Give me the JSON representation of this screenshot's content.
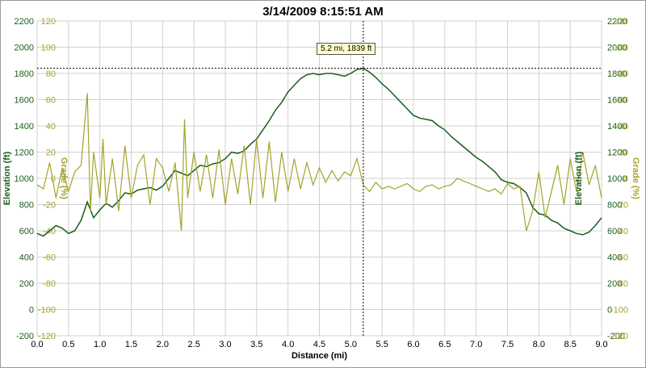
{
  "title": "3/14/2009 8:15:51 AM",
  "tooltip": "5.2 mi, 1839 ft",
  "colors": {
    "elevation": "#1a5e1a",
    "grade": "#a3a32a",
    "grid": "#d0d0d0",
    "axis": "#808080"
  },
  "chart_data": {
    "type": "line",
    "title": "3/14/2009 8:15:51 AM",
    "xlabel": "Distance (mi)",
    "ylabel": "Elevation (ft)",
    "y2label": "Grade (%)",
    "xlim": [
      0,
      9
    ],
    "ylim": [
      -200,
      2200
    ],
    "y2lim": [
      -120,
      120
    ],
    "xticks": [
      "0.0",
      "0.5",
      "1.0",
      "1.5",
      "2.0",
      "2.5",
      "3.0",
      "3.5",
      "4.0",
      "4.5",
      "5.0",
      "5.5",
      "6.0",
      "6.5",
      "7.0",
      "7.5",
      "8.0",
      "8.5",
      "9.0"
    ],
    "yticks": [
      "-200",
      "0",
      "200",
      "400",
      "600",
      "800",
      "1000",
      "1200",
      "1400",
      "1600",
      "1800",
      "2000",
      "2200"
    ],
    "y2ticks": [
      "-120",
      "-100",
      "-80",
      "-60",
      "-40",
      "-20",
      "0",
      "20",
      "40",
      "60",
      "80",
      "100",
      "120"
    ],
    "grid": true,
    "crosshair": {
      "x": 5.2,
      "y": 1839
    },
    "series": [
      {
        "name": "Elevation (ft)",
        "axis": "left",
        "x": [
          0,
          0.1,
          0.2,
          0.3,
          0.4,
          0.5,
          0.6,
          0.7,
          0.8,
          0.9,
          1.0,
          1.1,
          1.2,
          1.3,
          1.4,
          1.5,
          1.6,
          1.7,
          1.8,
          1.9,
          2.0,
          2.1,
          2.2,
          2.3,
          2.4,
          2.5,
          2.6,
          2.7,
          2.8,
          2.9,
          3.0,
          3.1,
          3.2,
          3.3,
          3.4,
          3.5,
          3.6,
          3.7,
          3.8,
          3.9,
          4.0,
          4.1,
          4.2,
          4.3,
          4.4,
          4.5,
          4.6,
          4.7,
          4.8,
          4.9,
          5.0,
          5.1,
          5.2,
          5.3,
          5.4,
          5.5,
          5.6,
          5.7,
          5.8,
          5.9,
          6.0,
          6.1,
          6.2,
          6.3,
          6.4,
          6.5,
          6.6,
          6.7,
          6.8,
          6.9,
          7.0,
          7.1,
          7.2,
          7.3,
          7.4,
          7.5,
          7.6,
          7.7,
          7.8,
          7.9,
          8.0,
          8.1,
          8.2,
          8.3,
          8.4,
          8.5,
          8.6,
          8.7,
          8.8,
          8.9,
          9.0
        ],
        "y": [
          580,
          560,
          600,
          640,
          620,
          580,
          600,
          680,
          820,
          700,
          760,
          810,
          780,
          830,
          890,
          880,
          910,
          920,
          930,
          910,
          940,
          1000,
          1060,
          1040,
          1020,
          1060,
          1100,
          1090,
          1110,
          1120,
          1150,
          1200,
          1190,
          1210,
          1260,
          1300,
          1370,
          1440,
          1520,
          1580,
          1660,
          1710,
          1760,
          1790,
          1800,
          1790,
          1800,
          1800,
          1790,
          1780,
          1800,
          1830,
          1839,
          1810,
          1770,
          1720,
          1680,
          1630,
          1580,
          1530,
          1480,
          1460,
          1450,
          1440,
          1400,
          1370,
          1320,
          1280,
          1240,
          1200,
          1160,
          1130,
          1090,
          1050,
          990,
          970,
          960,
          930,
          890,
          780,
          730,
          720,
          680,
          660,
          620,
          600,
          580,
          570,
          590,
          640,
          700
        ]
      },
      {
        "name": "Grade (%)",
        "axis": "right",
        "x": [
          0,
          0.1,
          0.2,
          0.3,
          0.4,
          0.5,
          0.6,
          0.7,
          0.8,
          0.85,
          0.9,
          1.0,
          1.05,
          1.1,
          1.2,
          1.3,
          1.4,
          1.5,
          1.6,
          1.7,
          1.8,
          1.9,
          2.0,
          2.1,
          2.2,
          2.3,
          2.35,
          2.4,
          2.5,
          2.6,
          2.7,
          2.8,
          2.9,
          3.0,
          3.1,
          3.2,
          3.3,
          3.4,
          3.5,
          3.6,
          3.7,
          3.8,
          3.9,
          4.0,
          4.1,
          4.2,
          4.3,
          4.4,
          4.5,
          4.6,
          4.7,
          4.8,
          4.9,
          5.0,
          5.1,
          5.2,
          5.3,
          5.4,
          5.5,
          5.6,
          5.7,
          5.8,
          5.9,
          6.0,
          6.1,
          6.2,
          6.3,
          6.4,
          6.5,
          6.6,
          6.7,
          6.8,
          6.9,
          7.0,
          7.1,
          7.2,
          7.3,
          7.4,
          7.5,
          7.6,
          7.7,
          7.8,
          7.9,
          8.0,
          8.1,
          8.2,
          8.3,
          8.4,
          8.5,
          8.6,
          8.7,
          8.8,
          8.9,
          9.0
        ],
        "y": [
          -5,
          -8,
          12,
          -15,
          8,
          -10,
          5,
          10,
          65,
          -25,
          20,
          -15,
          30,
          -20,
          15,
          -25,
          25,
          -15,
          10,
          18,
          -20,
          15,
          8,
          -10,
          12,
          -40,
          45,
          -15,
          20,
          -10,
          18,
          -15,
          22,
          -20,
          15,
          -12,
          25,
          -20,
          30,
          -15,
          28,
          -18,
          20,
          -10,
          15,
          -8,
          12,
          -5,
          8,
          -3,
          6,
          -2,
          5,
          2,
          15,
          -5,
          -10,
          -3,
          -8,
          -6,
          -8,
          -6,
          -4,
          -8,
          -10,
          -6,
          -5,
          -8,
          -6,
          -5,
          0,
          -2,
          -4,
          -6,
          -8,
          -10,
          -8,
          -12,
          -4,
          -8,
          -6,
          -40,
          -25,
          5,
          -30,
          -10,
          10,
          -20,
          15,
          -10,
          20,
          -5,
          10,
          -15
        ]
      }
    ]
  }
}
